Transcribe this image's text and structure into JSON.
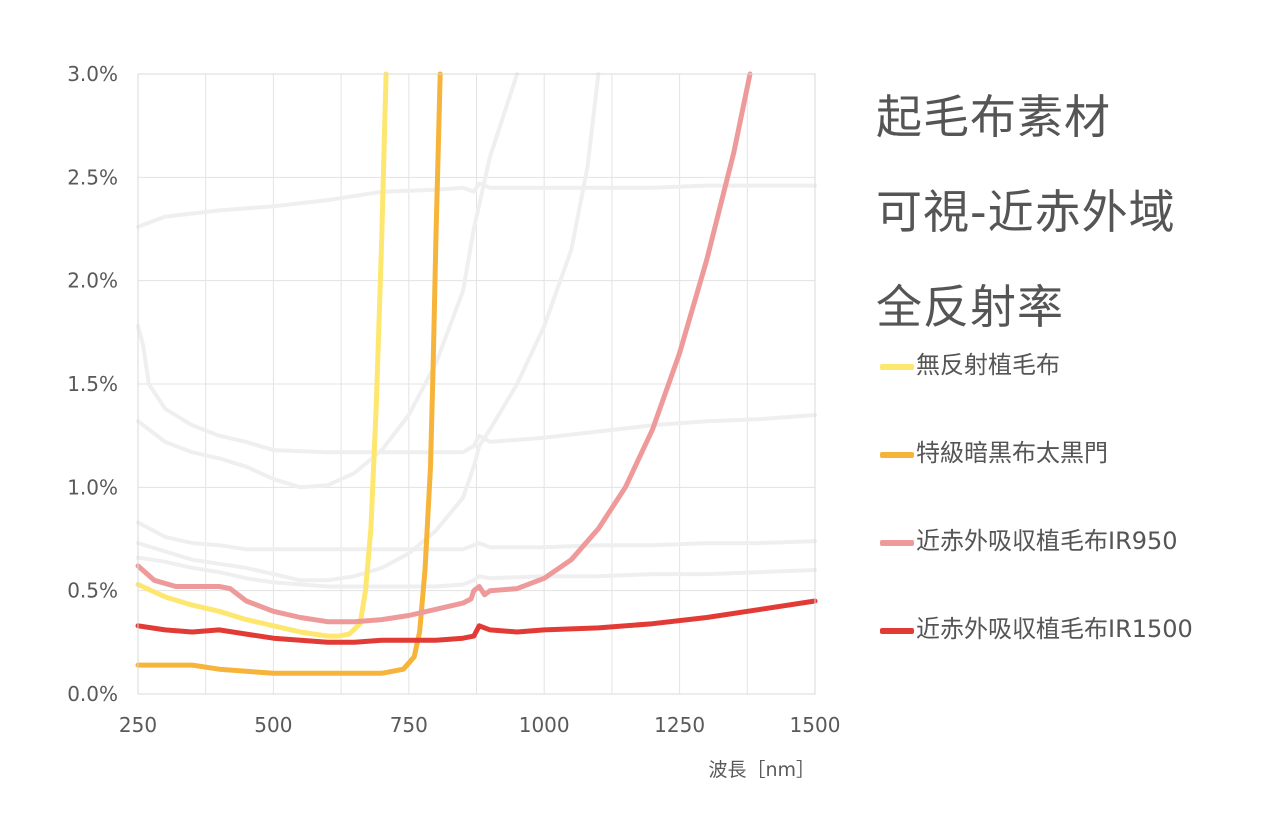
{
  "title_lines": [
    "起毛布素材",
    "可視-近赤外域",
    "全反射率"
  ],
  "chart_data": {
    "type": "line",
    "title": "起毛布素材 可視-近赤外域 全反射率",
    "xlabel": "波長［nm］",
    "ylabel": "",
    "xlim": [
      250,
      1500
    ],
    "ylim": [
      0,
      3.0
    ],
    "x_ticks": [
      250,
      500,
      750,
      1000,
      1250,
      1500
    ],
    "x_tick_labels": [
      "250",
      "500",
      "750",
      "1000",
      "1250",
      "1500"
    ],
    "y_ticks": [
      0,
      0.5,
      1.0,
      1.5,
      2.0,
      2.5,
      3.0
    ],
    "y_tick_labels": [
      "0.0%",
      "0.5%",
      "1.0%",
      "1.5%",
      "2.0%",
      "2.5%",
      "3.0%"
    ],
    "grid": true,
    "legend_position": "right",
    "background_series": [
      {
        "color": "#efefef",
        "points": [
          [
            250,
            2.26
          ],
          [
            300,
            2.31
          ],
          [
            400,
            2.34
          ],
          [
            500,
            2.36
          ],
          [
            600,
            2.39
          ],
          [
            700,
            2.43
          ],
          [
            800,
            2.44
          ],
          [
            850,
            2.45
          ],
          [
            870,
            2.43
          ],
          [
            880,
            2.47
          ],
          [
            900,
            2.45
          ],
          [
            1000,
            2.45
          ],
          [
            1100,
            2.45
          ],
          [
            1200,
            2.45
          ],
          [
            1300,
            2.46
          ],
          [
            1400,
            2.46
          ],
          [
            1500,
            2.46
          ]
        ]
      },
      {
        "color": "#efefef",
        "points": [
          [
            250,
            1.78
          ],
          [
            260,
            1.68
          ],
          [
            270,
            1.5
          ],
          [
            300,
            1.38
          ],
          [
            350,
            1.3
          ],
          [
            400,
            1.25
          ],
          [
            450,
            1.22
          ],
          [
            500,
            1.18
          ],
          [
            600,
            1.17
          ],
          [
            700,
            1.17
          ],
          [
            800,
            1.17
          ],
          [
            850,
            1.17
          ],
          [
            870,
            1.2
          ],
          [
            880,
            1.25
          ],
          [
            900,
            1.22
          ],
          [
            1000,
            1.24
          ],
          [
            1100,
            1.27
          ],
          [
            1200,
            1.3
          ],
          [
            1300,
            1.32
          ],
          [
            1400,
            1.33
          ],
          [
            1500,
            1.35
          ]
        ]
      },
      {
        "color": "#efefef",
        "points": [
          [
            250,
            1.32
          ],
          [
            300,
            1.22
          ],
          [
            350,
            1.17
          ],
          [
            400,
            1.14
          ],
          [
            450,
            1.1
          ],
          [
            500,
            1.04
          ],
          [
            550,
            1.0
          ],
          [
            600,
            1.01
          ],
          [
            650,
            1.07
          ],
          [
            700,
            1.18
          ],
          [
            750,
            1.35
          ],
          [
            800,
            1.6
          ],
          [
            850,
            1.95
          ],
          [
            870,
            2.25
          ],
          [
            900,
            2.6
          ],
          [
            950,
            3.0
          ]
        ]
      },
      {
        "color": "#efefef",
        "points": [
          [
            250,
            0.83
          ],
          [
            300,
            0.76
          ],
          [
            350,
            0.73
          ],
          [
            400,
            0.72
          ],
          [
            450,
            0.7
          ],
          [
            500,
            0.7
          ],
          [
            600,
            0.7
          ],
          [
            700,
            0.7
          ],
          [
            800,
            0.7
          ],
          [
            850,
            0.7
          ],
          [
            870,
            0.72
          ],
          [
            880,
            0.73
          ],
          [
            900,
            0.71
          ],
          [
            1000,
            0.71
          ],
          [
            1100,
            0.72
          ],
          [
            1200,
            0.72
          ],
          [
            1300,
            0.73
          ],
          [
            1400,
            0.73
          ],
          [
            1500,
            0.74
          ]
        ]
      },
      {
        "color": "#efefef",
        "points": [
          [
            250,
            0.73
          ],
          [
            300,
            0.69
          ],
          [
            350,
            0.65
          ],
          [
            400,
            0.63
          ],
          [
            450,
            0.61
          ],
          [
            500,
            0.58
          ],
          [
            550,
            0.55
          ],
          [
            600,
            0.55
          ],
          [
            650,
            0.57
          ],
          [
            700,
            0.61
          ],
          [
            750,
            0.68
          ],
          [
            800,
            0.79
          ],
          [
            850,
            0.95
          ],
          [
            870,
            1.1
          ],
          [
            880,
            1.2
          ],
          [
            900,
            1.28
          ],
          [
            950,
            1.5
          ],
          [
            1000,
            1.78
          ],
          [
            1050,
            2.15
          ],
          [
            1080,
            2.55
          ],
          [
            1100,
            3.0
          ]
        ]
      },
      {
        "color": "#efefef",
        "points": [
          [
            250,
            0.66
          ],
          [
            300,
            0.64
          ],
          [
            350,
            0.61
          ],
          [
            400,
            0.59
          ],
          [
            450,
            0.56
          ],
          [
            500,
            0.54
          ],
          [
            600,
            0.52
          ],
          [
            700,
            0.52
          ],
          [
            800,
            0.52
          ],
          [
            850,
            0.53
          ],
          [
            870,
            0.55
          ],
          [
            880,
            0.57
          ],
          [
            900,
            0.56
          ],
          [
            1000,
            0.57
          ],
          [
            1100,
            0.57
          ],
          [
            1200,
            0.58
          ],
          [
            1300,
            0.58
          ],
          [
            1400,
            0.59
          ],
          [
            1500,
            0.6
          ]
        ]
      }
    ],
    "series": [
      {
        "name": "無反射植毛布",
        "color": "#fde76e",
        "points": [
          [
            250,
            0.53
          ],
          [
            300,
            0.47
          ],
          [
            350,
            0.43
          ],
          [
            400,
            0.4
          ],
          [
            450,
            0.36
          ],
          [
            500,
            0.33
          ],
          [
            550,
            0.3
          ],
          [
            600,
            0.28
          ],
          [
            620,
            0.28
          ],
          [
            640,
            0.29
          ],
          [
            660,
            0.34
          ],
          [
            670,
            0.5
          ],
          [
            680,
            0.8
          ],
          [
            690,
            1.4
          ],
          [
            700,
            2.2
          ],
          [
            705,
            2.7
          ],
          [
            708,
            3.0
          ]
        ]
      },
      {
        "name": "特級暗黒布太黒門",
        "color": "#f6b43a",
        "points": [
          [
            250,
            0.14
          ],
          [
            300,
            0.14
          ],
          [
            350,
            0.14
          ],
          [
            400,
            0.12
          ],
          [
            450,
            0.11
          ],
          [
            500,
            0.1
          ],
          [
            550,
            0.1
          ],
          [
            600,
            0.1
          ],
          [
            650,
            0.1
          ],
          [
            700,
            0.1
          ],
          [
            740,
            0.12
          ],
          [
            760,
            0.18
          ],
          [
            770,
            0.3
          ],
          [
            780,
            0.6
          ],
          [
            790,
            1.1
          ],
          [
            795,
            1.6
          ],
          [
            800,
            2.2
          ],
          [
            805,
            2.7
          ],
          [
            808,
            3.0
          ]
        ]
      },
      {
        "name": "近赤外吸収植毛布IR950",
        "color": "#ef9a9a",
        "points": [
          [
            250,
            0.62
          ],
          [
            280,
            0.55
          ],
          [
            320,
            0.52
          ],
          [
            350,
            0.52
          ],
          [
            400,
            0.52
          ],
          [
            420,
            0.51
          ],
          [
            450,
            0.45
          ],
          [
            500,
            0.4
          ],
          [
            550,
            0.37
          ],
          [
            600,
            0.35
          ],
          [
            650,
            0.35
          ],
          [
            700,
            0.36
          ],
          [
            750,
            0.38
          ],
          [
            800,
            0.41
          ],
          [
            850,
            0.44
          ],
          [
            865,
            0.46
          ],
          [
            870,
            0.5
          ],
          [
            880,
            0.52
          ],
          [
            890,
            0.48
          ],
          [
            900,
            0.5
          ],
          [
            950,
            0.51
          ],
          [
            1000,
            0.56
          ],
          [
            1050,
            0.65
          ],
          [
            1100,
            0.8
          ],
          [
            1150,
            1.0
          ],
          [
            1200,
            1.28
          ],
          [
            1250,
            1.65
          ],
          [
            1300,
            2.1
          ],
          [
            1350,
            2.62
          ],
          [
            1380,
            3.0
          ]
        ]
      },
      {
        "name": "近赤外吸収植毛布IR1500",
        "color": "#e23b36",
        "points": [
          [
            250,
            0.33
          ],
          [
            300,
            0.31
          ],
          [
            350,
            0.3
          ],
          [
            400,
            0.31
          ],
          [
            450,
            0.29
          ],
          [
            500,
            0.27
          ],
          [
            550,
            0.26
          ],
          [
            600,
            0.25
          ],
          [
            650,
            0.25
          ],
          [
            700,
            0.26
          ],
          [
            750,
            0.26
          ],
          [
            800,
            0.26
          ],
          [
            850,
            0.27
          ],
          [
            870,
            0.28
          ],
          [
            880,
            0.33
          ],
          [
            900,
            0.31
          ],
          [
            950,
            0.3
          ],
          [
            1000,
            0.31
          ],
          [
            1100,
            0.32
          ],
          [
            1200,
            0.34
          ],
          [
            1300,
            0.37
          ],
          [
            1400,
            0.41
          ],
          [
            1500,
            0.45
          ]
        ]
      }
    ]
  }
}
